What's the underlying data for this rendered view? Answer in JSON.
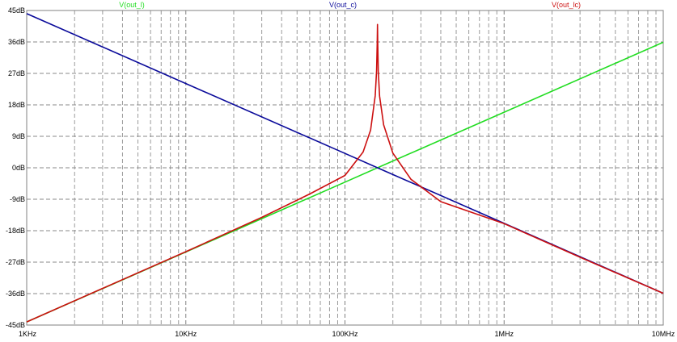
{
  "chart_data": {
    "type": "line",
    "x_scale": "log",
    "y_unit": "dB",
    "xlim": [
      1000,
      10000000
    ],
    "ylim": [
      -45,
      45
    ],
    "grid": true,
    "legend_placement": "top",
    "x_ticks": [
      {
        "value": 1000,
        "label": "1KHz"
      },
      {
        "value": 10000,
        "label": "10KHz"
      },
      {
        "value": 100000,
        "label": "100KHz"
      },
      {
        "value": 1000000,
        "label": "1MHz"
      },
      {
        "value": 10000000,
        "label": "10MHz"
      }
    ],
    "y_ticks": [
      {
        "value": 45,
        "label": "45dB"
      },
      {
        "value": 36,
        "label": "36dB"
      },
      {
        "value": 27,
        "label": "27dB"
      },
      {
        "value": 18,
        "label": "18dB"
      },
      {
        "value": 9,
        "label": "9dB"
      },
      {
        "value": 0,
        "label": "0dB"
      },
      {
        "value": -9,
        "label": "-9dB"
      },
      {
        "value": -18,
        "label": "-18dB"
      },
      {
        "value": -27,
        "label": "-27dB"
      },
      {
        "value": -36,
        "label": "-36dB"
      },
      {
        "value": -45,
        "label": "-45dB"
      }
    ],
    "series": [
      {
        "name": "V(out_l)",
        "color": "#22dd22",
        "x": [
          1000,
          10000,
          100000,
          160000,
          1000000,
          10000000
        ],
        "y": [
          -44.1,
          -24.1,
          -4.1,
          0,
          15.9,
          35.9
        ]
      },
      {
        "name": "V(out_c)",
        "color": "#0a0a9a",
        "x": [
          1000,
          10000,
          100000,
          160000,
          1000000,
          10000000
        ],
        "y": [
          44.1,
          24.1,
          4.1,
          0,
          -15.9,
          -35.9
        ]
      },
      {
        "name": "V(out_lc)",
        "color": "#cc1010",
        "x": [
          1000,
          3000,
          10000,
          30000,
          60000,
          100000,
          130000,
          145000,
          155000,
          158000,
          159500,
          160000,
          160600,
          162000,
          165000,
          175000,
          200000,
          260000,
          400000,
          1000000,
          3000000,
          10000000
        ],
        "y": [
          -44.1,
          -34.5,
          -24.0,
          -14.2,
          -7.5,
          -2.2,
          4.5,
          10.8,
          20.6,
          27.8,
          36.0,
          41.0,
          36.0,
          27.5,
          20.5,
          12.3,
          4.2,
          -3.3,
          -9.7,
          -16.0,
          -25.6,
          -35.9
        ]
      }
    ]
  }
}
